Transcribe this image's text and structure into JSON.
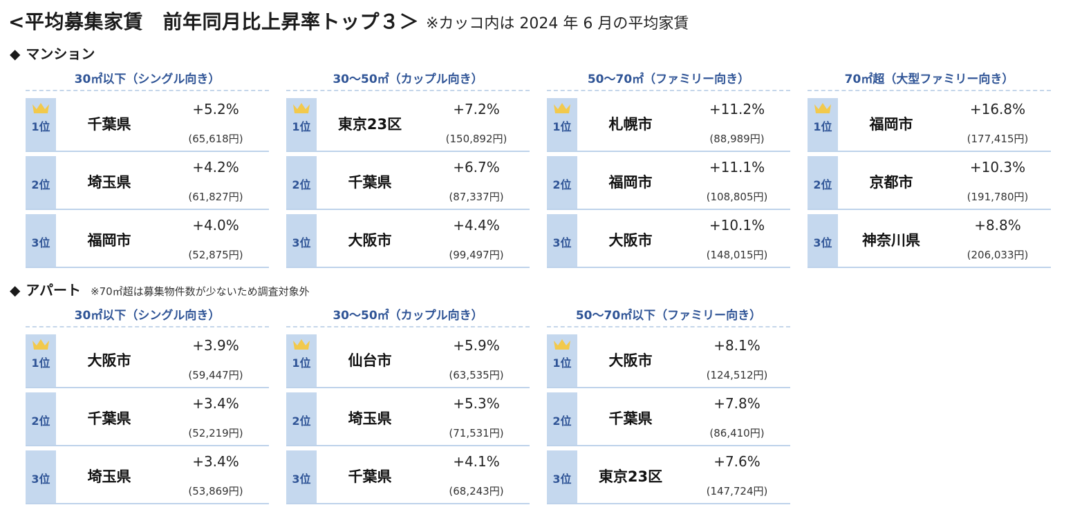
{
  "title": {
    "main": "<平均募集家賃　前年同月比上昇率トップ３＞",
    "note": "※カッコ内は 2024 年 6 月の平均家賃"
  },
  "mansion": {
    "label": "マンション",
    "groups": [
      {
        "header": "30㎡以下（シングル向き）",
        "rows": [
          {
            "rank": "1位",
            "city": "千葉県",
            "rate": "+5.2%",
            "rent": "(65,618円)"
          },
          {
            "rank": "2位",
            "city": "埼玉県",
            "rate": "+4.2%",
            "rent": "(61,827円)"
          },
          {
            "rank": "3位",
            "city": "福岡市",
            "rate": "+4.0%",
            "rent": "(52,875円)"
          }
        ]
      },
      {
        "header": "30～50㎡（カップル向き）",
        "rows": [
          {
            "rank": "1位",
            "city": "東京23区",
            "rate": "+7.2%",
            "rent": "(150,892円)"
          },
          {
            "rank": "2位",
            "city": "千葉県",
            "rate": "+6.7%",
            "rent": "(87,337円)"
          },
          {
            "rank": "3位",
            "city": "大阪市",
            "rate": "+4.4%",
            "rent": "(99,497円)"
          }
        ]
      },
      {
        "header": "50～70㎡（ファミリー向き）",
        "rows": [
          {
            "rank": "1位",
            "city": "札幌市",
            "rate": "+11.2%",
            "rent": "(88,989円)"
          },
          {
            "rank": "2位",
            "city": "福岡市",
            "rate": "+11.1%",
            "rent": "(108,805円)"
          },
          {
            "rank": "3位",
            "city": "大阪市",
            "rate": "+10.1%",
            "rent": "(148,015円)"
          }
        ]
      },
      {
        "header": "70㎡超（大型ファミリー向き）",
        "rows": [
          {
            "rank": "1位",
            "city": "福岡市",
            "rate": "+16.8%",
            "rent": "(177,415円)"
          },
          {
            "rank": "2位",
            "city": "京都市",
            "rate": "+10.3%",
            "rent": "(191,780円)"
          },
          {
            "rank": "3位",
            "city": "神奈川県",
            "rate": "+8.8%",
            "rent": "(206,033円)"
          }
        ]
      }
    ]
  },
  "apart": {
    "label": "アパート",
    "note": "※70㎡超は募集物件数が少ないため調査対象外",
    "groups": [
      {
        "header": "30㎡以下（シングル向き）",
        "rows": [
          {
            "rank": "1位",
            "city": "大阪市",
            "rate": "+3.9%",
            "rent": "(59,447円)"
          },
          {
            "rank": "2位",
            "city": "千葉県",
            "rate": "+3.4%",
            "rent": "(52,219円)"
          },
          {
            "rank": "3位",
            "city": "埼玉県",
            "rate": "+3.4%",
            "rent": "(53,869円)"
          }
        ]
      },
      {
        "header": "30～50㎡（カップル向き）",
        "rows": [
          {
            "rank": "1位",
            "city": "仙台市",
            "rate": "+5.9%",
            "rent": "(63,535円)"
          },
          {
            "rank": "2位",
            "city": "埼玉県",
            "rate": "+5.3%",
            "rent": "(71,531円)"
          },
          {
            "rank": "3位",
            "city": "千葉県",
            "rate": "+4.1%",
            "rent": "(68,243円)"
          }
        ]
      },
      {
        "header": "50～70㎡以下（ファミリー向き）",
        "rows": [
          {
            "rank": "1位",
            "city": "大阪市",
            "rate": "+8.1%",
            "rent": "(124,512円)"
          },
          {
            "rank": "2位",
            "city": "千葉県",
            "rate": "+7.8%",
            "rent": "(86,410円)"
          },
          {
            "rank": "3位",
            "city": "東京23区",
            "rate": "+7.6%",
            "rent": "(147,724円)"
          }
        ]
      }
    ]
  },
  "colors": {
    "header_text": "#2f5496",
    "rank_cell": "#c5d8ee",
    "crown": "#f2c94c"
  },
  "icons": {
    "section_marker": "◆",
    "top_rank": "crown-icon"
  }
}
